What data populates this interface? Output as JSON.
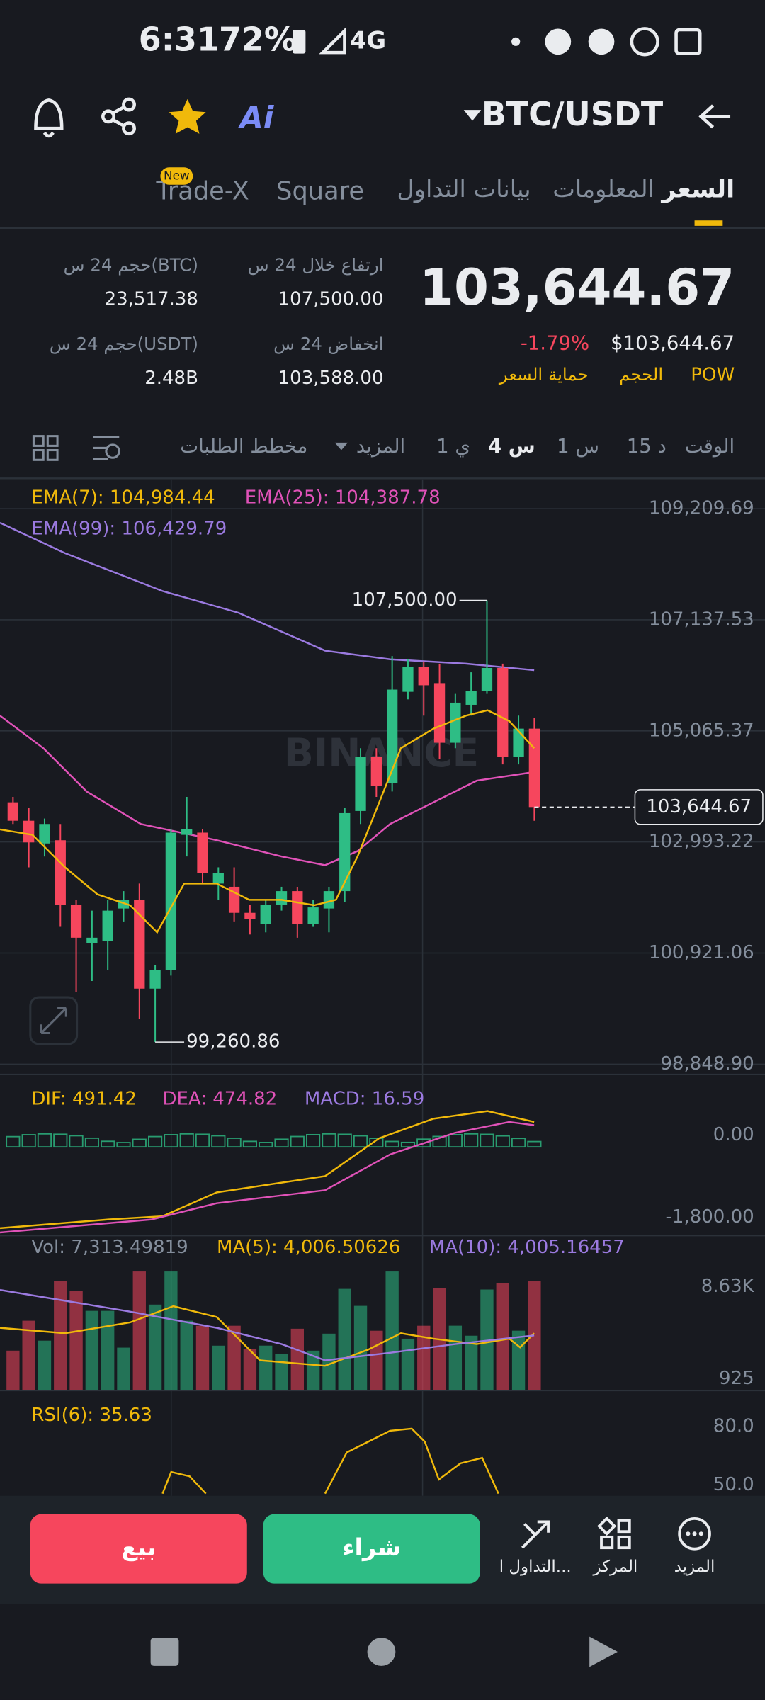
{
  "status": {
    "time": "6:31",
    "battery": "72%",
    "network": "4G"
  },
  "header": {
    "pair": "BTC/USDT",
    "ai": "Ai"
  },
  "tabs": [
    "السعر",
    "المعلومات",
    "بيانات التداول",
    "Square",
    "Trade-X"
  ],
  "tab_badge": "New",
  "ticker": {
    "price": "103,644.67",
    "change": "-1.79%",
    "price_usd": "$103,644.67",
    "tags": [
      "POW",
      "الحجم",
      "حماية السعر"
    ]
  },
  "stats": {
    "high_label": "ارتفاع خلال 24 س",
    "high": "107,500.00",
    "low_label": "انخفاض 24 س",
    "low": "103,588.00",
    "vol_btc_label": "حجم 24 س(BTC)",
    "vol_btc": "23,517.38",
    "vol_usdt_label": "حجم 24 س(USDT)",
    "vol_usdt": "2.48B"
  },
  "intervals": [
    "الوقت",
    "15 د",
    "1 س",
    "4 س",
    "1 ي",
    "المزيد",
    "مخطط الطلبات"
  ],
  "chart_data": {
    "type": "candlestick",
    "indicators": [
      "EMA(7): 104,984.44",
      "EMA(25): 104,387.78",
      "EMA(99): 106,429.79"
    ],
    "watermark": "BINANCE",
    "open": [
      103733,
      103389,
      102965,
      103025,
      101813,
      101106,
      101146,
      101752,
      101914,
      100257,
      100601,
      103126,
      103167,
      102217,
      102157,
      101671,
      101469,
      101813,
      102076,
      101469,
      101752,
      102076,
      103571,
      104582,
      104097,
      105794,
      106259,
      105956,
      104844,
      105552,
      105815,
      106239,
      104582,
      105107
    ],
    "high": [
      103834,
      103632,
      103430,
      103329,
      101914,
      101712,
      101914,
      102076,
      102217,
      100701,
      103227,
      103834,
      103227,
      102520,
      102520,
      101813,
      101914,
      102157,
      102157,
      101914,
      102157,
      103632,
      104743,
      104743,
      106461,
      106401,
      106360,
      106320,
      105754,
      106158,
      107500,
      106320,
      105350,
      105309
    ],
    "low": [
      103329,
      102520,
      102722,
      101409,
      100196,
      100399,
      100601,
      101510,
      99691,
      99260.86,
      100500,
      102722,
      102217,
      101914,
      101510,
      101267,
      101307,
      101712,
      101207,
      101409,
      101307,
      101873,
      103329,
      103834,
      103935,
      105653,
      105350,
      104541,
      104743,
      105350,
      105754,
      104440,
      104440,
      103389
    ],
    "close": [
      103389,
      102985,
      103329,
      101813,
      101207,
      101207,
      101712,
      101914,
      100257,
      100601,
      103167,
      103227,
      102419,
      102419,
      101671,
      101550,
      101813,
      102076,
      101469,
      101772,
      102076,
      103531,
      104582,
      104036,
      105835,
      106259,
      105916,
      104844,
      105592,
      105815,
      106239,
      104582,
      105107,
      103644.67
    ],
    "ylim": [
      98680,
      109755
    ],
    "yticks": [
      {
        "value": 98848.9,
        "label": "98,848.90"
      },
      {
        "value": 100921.06,
        "label": "100,921.06"
      },
      {
        "value": 102993.22,
        "label": "102,993.22"
      },
      {
        "value": 105065.37,
        "label": "105,065.37"
      },
      {
        "value": 107137.53,
        "label": "107,137.53"
      },
      {
        "value": 109209.69,
        "label": "109,209.69"
      }
    ],
    "annotations": [
      {
        "value": 107500,
        "label": "107,500.00"
      },
      {
        "value": 99260.86,
        "label": "99,260.86"
      }
    ],
    "last_price": {
      "value": 103644.67,
      "label": "103,644.67"
    },
    "up_color": "#2ebd85",
    "down_color": "#f6465d"
  },
  "macd": {
    "labels": [
      "DIF: 491.42",
      "DEA: 474.82",
      "MACD: 16.59"
    ],
    "axis": [
      "0.00",
      "-1,800.00"
    ]
  },
  "volume": {
    "labels": [
      "Vol: 7,313.49819",
      "MA(5): 4,006.50626",
      "MA(10): 4,005.16457"
    ],
    "axis": [
      "8.63K",
      "925"
    ]
  },
  "rsi": {
    "labels": [
      "RSI(6): 35.63"
    ],
    "axis": [
      "80.0",
      "50.0"
    ]
  },
  "actions": {
    "sell": "بيع",
    "buy": "شراء"
  },
  "nav": [
    "التداول ا...",
    "المركز",
    "المزيد"
  ]
}
